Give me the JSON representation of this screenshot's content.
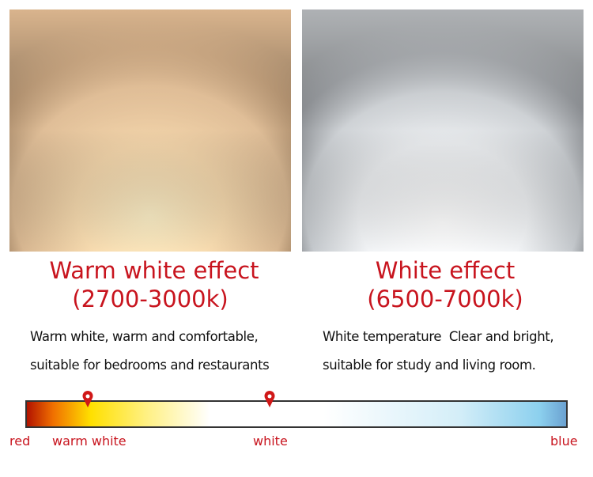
{
  "panels": [
    {
      "title": "Warm white effect",
      "range": "(2700-3000k)",
      "lines": [
        "Warm white, warm and comfortable,",
        "suitable for bedrooms and restaurants"
      ]
    },
    {
      "title": "White effect",
      "range": "(6500-7000k)",
      "lines": [
        "White temperature  Clear and bright,",
        "suitable for study and living room."
      ]
    }
  ],
  "scale": {
    "labels": [
      "red",
      "warm white",
      "white",
      "blue"
    ]
  }
}
